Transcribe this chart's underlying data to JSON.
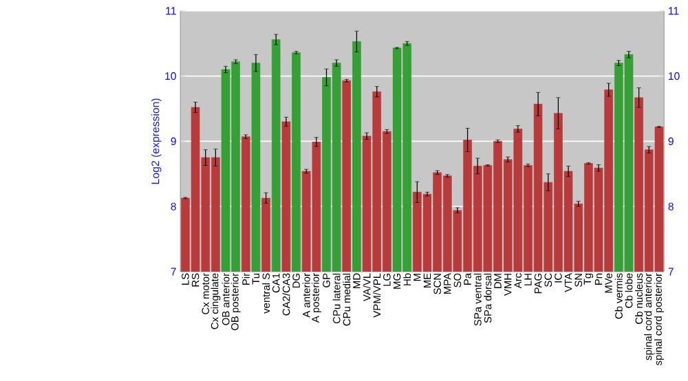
{
  "chart_data": {
    "type": "bar",
    "ylabel": "Log2 (expression)",
    "categories": [
      "LS",
      "RS",
      "Cx motor",
      "Cx cingulate",
      "OB anterior",
      "OB posterior",
      "Pir",
      "Tu",
      "ventral S",
      "CA1",
      "CA2/CA3",
      "DG",
      "A anterior",
      "A posterior",
      "GP",
      "CPu lateral",
      "CPu medial",
      "MD",
      "VA/VL",
      "VPM/VPL",
      "LG",
      "MG",
      "Hb",
      "M",
      "ME",
      "SCN",
      "MPA",
      "SO",
      "Pa",
      "SPa ventral",
      "SPa dorsal",
      "DM",
      "VMH",
      "Arc",
      "LH",
      "PAG",
      "SC",
      "IC",
      "VTA",
      "SN",
      "Tg",
      "Pn",
      "MVe",
      "Cb vermis",
      "Cb lobe",
      "Cb nucleus",
      "spinal cord anterior",
      "spinal cord posterior"
    ],
    "values": [
      8.13,
      9.52,
      8.75,
      8.75,
      10.1,
      10.22,
      9.07,
      10.2,
      8.13,
      10.56,
      9.3,
      10.36,
      8.54,
      8.99,
      9.98,
      10.2,
      9.93,
      10.53,
      9.08,
      9.76,
      9.15,
      10.43,
      10.5,
      8.22,
      8.19,
      8.52,
      8.47,
      7.94,
      9.02,
      8.62,
      8.63,
      9.0,
      8.72,
      9.19,
      8.63,
      9.57,
      8.37,
      9.43,
      8.54,
      8.04,
      8.66,
      8.59,
      9.79,
      10.2,
      10.33,
      9.67,
      8.87,
      9.22
    ],
    "errors": [
      0.01,
      0.08,
      0.12,
      0.13,
      0.05,
      0.03,
      0.03,
      0.13,
      0.08,
      0.08,
      0.07,
      0.02,
      0.03,
      0.07,
      0.13,
      0.05,
      0.02,
      0.16,
      0.05,
      0.08,
      0.03,
      0.01,
      0.03,
      0.16,
      0.03,
      0.03,
      0.02,
      0.04,
      0.18,
      0.12,
      0.01,
      0.02,
      0.04,
      0.05,
      0.02,
      0.18,
      0.13,
      0.24,
      0.08,
      0.04,
      0.01,
      0.05,
      0.1,
      0.04,
      0.05,
      0.15,
      0.05,
      0.01
    ],
    "colors": [
      "#b83a3a",
      "#b83a3a",
      "#b83a3a",
      "#b83a3a",
      "#35a035",
      "#35a035",
      "#b83a3a",
      "#35a035",
      "#b83a3a",
      "#35a035",
      "#b83a3a",
      "#35a035",
      "#b83a3a",
      "#b83a3a",
      "#35a035",
      "#35a035",
      "#b83a3a",
      "#35a035",
      "#b83a3a",
      "#b83a3a",
      "#b83a3a",
      "#35a035",
      "#35a035",
      "#b83a3a",
      "#b83a3a",
      "#b83a3a",
      "#b83a3a",
      "#b83a3a",
      "#b83a3a",
      "#b83a3a",
      "#b83a3a",
      "#b83a3a",
      "#b83a3a",
      "#b83a3a",
      "#b83a3a",
      "#b83a3a",
      "#b83a3a",
      "#b83a3a",
      "#b83a3a",
      "#b83a3a",
      "#b83a3a",
      "#b83a3a",
      "#b83a3a",
      "#35a035",
      "#35a035",
      "#b83a3a",
      "#b83a3a",
      "#b83a3a"
    ],
    "ylim": [
      7,
      11
    ],
    "yticks": [
      7,
      8,
      9,
      10,
      11
    ],
    "y2lim": [
      7,
      11
    ],
    "y2ticks": [
      7,
      8,
      9,
      10,
      11
    ],
    "grid": "y"
  }
}
